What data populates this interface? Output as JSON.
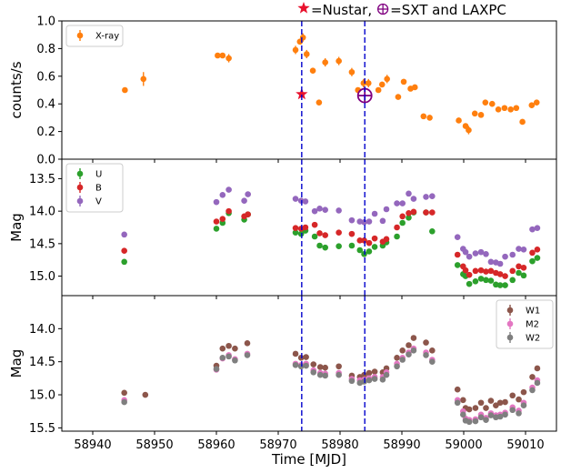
{
  "chart_data": {
    "type": "scatter",
    "x_axis": {
      "label": "Time [MJD]",
      "range": [
        58935,
        59015
      ],
      "ticks": [
        58940,
        58950,
        58960,
        58970,
        58980,
        58990,
        59000,
        59010
      ]
    },
    "annotation": {
      "nustar_text": "=Nustar,",
      "sxt_text": "=SXT and LAXPC",
      "nustar_color": "#e8112d",
      "sxt_color": "#800080"
    },
    "vertical_lines": [
      {
        "x": 58973.8,
        "color": "#0000cc",
        "style": "dashed"
      },
      {
        "x": 58984.0,
        "color": "#0000cc",
        "style": "dashed"
      }
    ],
    "panels": [
      {
        "id": "xray",
        "ylabel": "counts/s",
        "ylim": [
          0.0,
          1.0
        ],
        "inverted": false,
        "yticks": [
          0.0,
          0.2,
          0.4,
          0.6,
          0.8,
          1.0
        ],
        "ytick_labels": [
          "0.0",
          "0.2",
          "0.4",
          "0.6",
          "0.8",
          "1.0"
        ],
        "legend_position": "upper-left",
        "markers": [
          {
            "name": "Nustar",
            "symbol": "star",
            "x": 58973.8,
            "y": 0.47,
            "color": "#e8112d"
          },
          {
            "name": "SXT and LAXPC",
            "symbol": "circle-plus",
            "x": 58984.0,
            "y": 0.46,
            "color": "#800080"
          }
        ],
        "series": [
          {
            "name": "X-ray",
            "color": "#ff7f0e",
            "x": [
              58945.2,
              58948.2,
              58960.2,
              58961.0,
              58962.0,
              58972.8,
              58973.5,
              58974.0,
              58974.6,
              58975.6,
              58976.6,
              58977.6,
              58979.8,
              58981.9,
              58982.9,
              58983.8,
              58984.6,
              58986.2,
              58986.8,
              58987.6,
              58989.4,
              58990.3,
              58991.4,
              58992.1,
              58993.5,
              58994.5,
              58999.2,
              59000.3,
              59000.8,
              59001.8,
              59002.8,
              59003.5,
              59004.6,
              59005.6,
              59006.6,
              59007.6,
              59008.5,
              59009.5,
              59011.0,
              59011.8
            ],
            "y": [
              0.5,
              0.58,
              0.75,
              0.75,
              0.73,
              0.79,
              0.85,
              0.88,
              0.76,
              0.64,
              0.41,
              0.7,
              0.71,
              0.63,
              0.5,
              0.55,
              0.55,
              0.5,
              0.54,
              0.58,
              0.45,
              0.56,
              0.51,
              0.52,
              0.31,
              0.3,
              0.28,
              0.24,
              0.21,
              0.33,
              0.32,
              0.41,
              0.4,
              0.36,
              0.37,
              0.36,
              0.37,
              0.27,
              0.39,
              0.41
            ],
            "err": [
              0.02,
              0.05,
              0.02,
              0.02,
              0.03,
              0.03,
              0.02,
              0.03,
              0.03,
              0.02,
              0.02,
              0.03,
              0.03,
              0.03,
              0.02,
              0.03,
              0.03,
              0.02,
              0.02,
              0.03,
              0.02,
              0.02,
              0.02,
              0.02,
              0.02,
              0.02,
              0.02,
              0.02,
              0.03,
              0.02,
              0.02,
              0.02,
              0.02,
              0.02,
              0.02,
              0.02,
              0.02,
              0.02,
              0.02,
              0.02
            ]
          }
        ]
      },
      {
        "id": "optical",
        "ylabel": "Mag",
        "ylim": [
          15.3,
          13.2
        ],
        "inverted": true,
        "yticks": [
          13.5,
          14.0,
          14.5,
          15.0
        ],
        "ytick_labels": [
          "13.5",
          "14.0",
          "14.5",
          "15.0"
        ],
        "legend_position": "upper-left",
        "series": [
          {
            "name": "U",
            "color": "#2ca02c",
            "x": [
              58945.1,
              58960.0,
              58961.0,
              58962.0,
              58964.5,
              58965.1,
              58972.8,
              58973.7,
              58974.4,
              58975.9,
              58976.7,
              58977.6,
              58979.8,
              58981.9,
              58983.2,
              58983.9,
              58984.7,
              58985.6,
              58986.9,
              58987.5,
              58989.2,
              58990.1,
              58991.1,
              58991.9,
              58993.9,
              58994.9,
              58999.0,
              58999.9,
              59000.3,
              59000.9,
              59001.9,
              59002.8,
              59003.6,
              59004.4,
              59005.2,
              59005.9,
              59006.7,
              59007.9,
              59008.9,
              59009.7,
              59011.1,
              59011.9
            ],
            "y": [
              14.78,
              14.27,
              14.18,
              14.03,
              14.13,
              14.05,
              14.33,
              14.35,
              14.3,
              14.39,
              14.53,
              14.56,
              14.54,
              14.53,
              14.6,
              14.66,
              14.62,
              14.55,
              14.53,
              14.48,
              14.39,
              14.18,
              14.1,
              14.02,
              14.02,
              14.31,
              14.83,
              14.97,
              15.0,
              15.12,
              15.08,
              15.04,
              15.06,
              15.07,
              15.13,
              15.14,
              15.14,
              15.06,
              14.95,
              14.99,
              14.77,
              14.72
            ]
          },
          {
            "name": "B",
            "color": "#d62728",
            "x": [
              58945.1,
              58960.0,
              58961.0,
              58962.0,
              58964.5,
              58965.1,
              58972.8,
              58973.7,
              58974.4,
              58975.9,
              58976.7,
              58977.6,
              58979.8,
              58981.9,
              58983.2,
              58983.9,
              58984.7,
              58985.6,
              58986.9,
              58987.5,
              58989.2,
              58990.1,
              58991.1,
              58991.9,
              58993.9,
              58994.9,
              58999.0,
              58999.9,
              59000.3,
              59000.9,
              59001.9,
              59002.8,
              59003.6,
              59004.4,
              59005.2,
              59005.9,
              59006.7,
              59007.9,
              59008.9,
              59009.7,
              59011.1,
              59011.9
            ],
            "y": [
              14.61,
              14.16,
              14.12,
              14.0,
              14.08,
              14.05,
              14.26,
              14.27,
              14.25,
              14.21,
              14.34,
              14.37,
              14.33,
              14.35,
              14.45,
              14.45,
              14.49,
              14.42,
              14.47,
              14.43,
              14.25,
              14.08,
              14.03,
              14.01,
              14.02,
              14.02,
              14.67,
              14.85,
              14.91,
              14.98,
              14.92,
              14.91,
              14.93,
              14.92,
              14.95,
              14.97,
              15.0,
              14.92,
              14.85,
              14.87,
              14.64,
              14.59
            ]
          },
          {
            "name": "V",
            "color": "#9467bd",
            "x": [
              58945.1,
              58960.0,
              58961.0,
              58962.0,
              58964.5,
              58965.1,
              58972.8,
              58973.7,
              58974.4,
              58975.9,
              58976.7,
              58977.6,
              58979.8,
              58981.9,
              58983.2,
              58983.9,
              58984.7,
              58985.6,
              58986.9,
              58987.5,
              58989.2,
              58990.1,
              58991.1,
              58991.9,
              58993.9,
              58994.9,
              58999.0,
              58999.9,
              59000.3,
              59000.9,
              59001.9,
              59002.8,
              59003.6,
              59004.4,
              59005.2,
              59005.9,
              59006.7,
              59007.9,
              59008.9,
              59009.7,
              59011.1,
              59011.9
            ],
            "y": [
              14.36,
              13.86,
              13.75,
              13.67,
              13.84,
              13.74,
              13.81,
              13.84,
              13.85,
              14.0,
              13.96,
              13.98,
              13.99,
              14.14,
              14.16,
              14.17,
              14.16,
              14.04,
              14.15,
              13.97,
              13.88,
              13.88,
              13.73,
              13.81,
              13.78,
              13.77,
              14.4,
              14.58,
              14.63,
              14.7,
              14.65,
              14.63,
              14.66,
              14.78,
              14.79,
              14.81,
              14.7,
              14.67,
              14.58,
              14.59,
              14.28,
              14.26
            ]
          }
        ]
      },
      {
        "id": "uv",
        "ylabel": "Mag",
        "ylim": [
          15.55,
          13.5
        ],
        "inverted": true,
        "yticks": [
          14.0,
          14.5,
          15.0,
          15.5
        ],
        "ytick_labels": [
          "14.0",
          "14.5",
          "15.0",
          "15.5"
        ],
        "legend_position": "upper-right",
        "series": [
          {
            "name": "W1",
            "color": "#8c564b",
            "x": [
              58945.1,
              58948.5,
              58960.0,
              58961.0,
              58962.0,
              58963.0,
              58965.0,
              58972.8,
              58973.7,
              58974.5,
              58975.7,
              58976.8,
              58977.6,
              58979.8,
              58981.9,
              58983.2,
              58983.9,
              58984.7,
              58985.6,
              58986.9,
              58987.5,
              58989.2,
              58990.1,
              58991.1,
              58991.9,
              58993.9,
              58994.9,
              58999.0,
              58999.9,
              59000.3,
              59000.9,
              59001.9,
              59002.8,
              59003.6,
              59004.4,
              59005.2,
              59005.9,
              59006.7,
              59007.9,
              59008.9,
              59009.7,
              59011.1,
              59011.9
            ],
            "y": [
              14.97,
              15.0,
              14.56,
              14.3,
              14.26,
              14.3,
              14.22,
              14.38,
              14.44,
              14.43,
              14.54,
              14.58,
              14.59,
              14.57,
              14.71,
              14.73,
              14.7,
              14.67,
              14.65,
              14.66,
              14.6,
              14.44,
              14.33,
              14.25,
              14.14,
              14.21,
              14.33,
              14.92,
              15.08,
              15.2,
              15.22,
              15.2,
              15.12,
              15.2,
              15.09,
              15.16,
              15.12,
              15.11,
              15.01,
              15.07,
              14.96,
              14.73,
              14.6
            ]
          },
          {
            "name": "M2",
            "color": "#e377c2",
            "x": [
              58945.1,
              58960.0,
              58961.0,
              58962.0,
              58963.0,
              58965.0,
              58972.8,
              58973.7,
              58974.5,
              58975.7,
              58976.8,
              58977.6,
              58979.8,
              58981.9,
              58983.2,
              58983.9,
              58984.7,
              58985.6,
              58986.9,
              58987.5,
              58989.2,
              58990.1,
              58991.1,
              58991.9,
              58993.9,
              58994.9,
              58999.0,
              58999.9,
              59000.3,
              59000.9,
              59001.9,
              59002.8,
              59003.6,
              59004.4,
              59005.2,
              59005.9,
              59006.7,
              59007.9,
              59008.9,
              59009.7,
              59011.1,
              59011.9
            ],
            "y": [
              15.08,
              14.62,
              14.45,
              14.4,
              14.46,
              14.38,
              14.53,
              14.55,
              14.53,
              14.63,
              14.67,
              14.68,
              14.67,
              14.76,
              14.78,
              14.77,
              14.75,
              14.73,
              14.73,
              14.66,
              14.53,
              14.44,
              14.36,
              14.3,
              14.36,
              14.47,
              15.08,
              15.25,
              15.36,
              15.38,
              15.37,
              15.3,
              15.35,
              15.28,
              15.31,
              15.3,
              15.27,
              15.19,
              15.24,
              15.12,
              14.89,
              14.78
            ]
          },
          {
            "name": "W2",
            "color": "#7f7f7f",
            "x": [
              58945.1,
              58960.0,
              58961.0,
              58962.0,
              58963.0,
              58965.0,
              58972.8,
              58973.7,
              58974.5,
              58975.7,
              58976.8,
              58977.6,
              58979.8,
              58981.9,
              58983.2,
              58983.9,
              58984.7,
              58985.6,
              58986.9,
              58987.5,
              58989.2,
              58990.1,
              58991.1,
              58991.9,
              58993.9,
              58994.9,
              58999.0,
              58999.9,
              59000.3,
              59000.9,
              59001.9,
              59002.8,
              59003.6,
              59004.4,
              59005.2,
              59005.9,
              59006.7,
              59007.9,
              59008.9,
              59009.7,
              59011.1,
              59011.9
            ],
            "y": [
              15.11,
              14.61,
              14.44,
              14.42,
              14.48,
              14.4,
              14.55,
              14.57,
              14.56,
              14.66,
              14.7,
              14.71,
              14.7,
              14.79,
              14.82,
              14.8,
              14.78,
              14.76,
              14.77,
              14.7,
              14.57,
              14.47,
              14.39,
              14.33,
              14.4,
              14.5,
              15.12,
              15.3,
              15.39,
              15.41,
              15.4,
              15.34,
              15.38,
              15.31,
              15.34,
              15.33,
              15.3,
              15.23,
              15.28,
              15.16,
              14.93,
              14.82
            ]
          }
        ]
      }
    ]
  }
}
